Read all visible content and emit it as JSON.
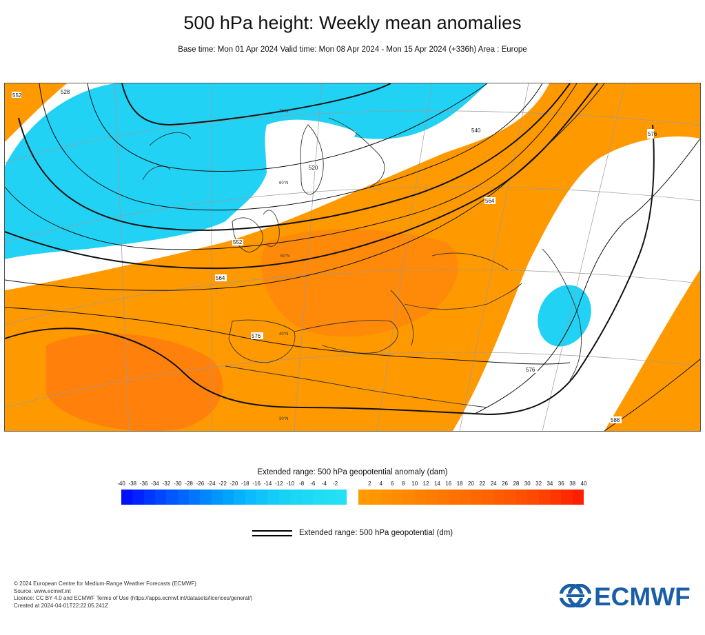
{
  "header": {
    "title": "500 hPa height: Weekly mean anomalies",
    "subtitle": "Base time: Mon 01 Apr 2024 Valid time: Mon 08 Apr 2024 - Mon 15 Apr 2024 (+336h) Area : Europe"
  },
  "map": {
    "contour_labels": [
      {
        "id": "c552a",
        "text": "552"
      },
      {
        "id": "c552b",
        "text": "552"
      },
      {
        "id": "c564a",
        "text": "564"
      },
      {
        "id": "c564b",
        "text": "564"
      },
      {
        "id": "c576a",
        "text": "576"
      },
      {
        "id": "c576b",
        "text": "576"
      },
      {
        "id": "c576c",
        "text": "576"
      },
      {
        "id": "c588",
        "text": "588"
      },
      {
        "id": "c540",
        "text": "540"
      },
      {
        "id": "c528",
        "text": "528"
      },
      {
        "id": "c520",
        "text": "520"
      }
    ],
    "latitude_labels": [
      "70°N",
      "60°N",
      "50°N",
      "40°N",
      "30°N"
    ],
    "colors": {
      "negative_anomaly": "#22d2f5",
      "positive_anomaly": "#ff9900",
      "strong_positive_anomaly": "#ff7a10",
      "coastline": "#333333",
      "contour": "#111111",
      "graticule": "#999999"
    }
  },
  "legend": {
    "title": "Extended range: 500 hPa geopotential anomaly (dam)",
    "negative_ticks": [
      "-40",
      "-38",
      "-36",
      "-34",
      "-32",
      "-30",
      "-28",
      "-26",
      "-24",
      "-22",
      "-20",
      "-18",
      "-16",
      "-14",
      "-12",
      "-10",
      "-8",
      "-6",
      "-4",
      "-2"
    ],
    "positive_ticks": [
      "2",
      "4",
      "6",
      "8",
      "10",
      "12",
      "14",
      "16",
      "18",
      "20",
      "22",
      "24",
      "26",
      "28",
      "30",
      "32",
      "34",
      "36",
      "38",
      "40"
    ],
    "negative_colors": [
      "#0010ff",
      "#0022ff",
      "#0035ff",
      "#0045ff",
      "#0056ff",
      "#0066ff",
      "#0076ff",
      "#0086ff",
      "#0096ff",
      "#00a4ff",
      "#05b0ff",
      "#0abcff",
      "#0fc4fc",
      "#14ccf8",
      "#18d2f6",
      "#1bd6f5",
      "#1ed9f5",
      "#20dcf5",
      "#21def5",
      "#22e0f5"
    ],
    "positive_colors": [
      "#ff9a00",
      "#ff9500",
      "#ff9000",
      "#ff8b00",
      "#ff8600",
      "#ff8100",
      "#ff7c00",
      "#ff7700",
      "#ff7200",
      "#ff6d00",
      "#ff6800",
      "#ff6200",
      "#ff5c00",
      "#ff5600",
      "#ff4f00",
      "#ff4800",
      "#ff4000",
      "#ff3600",
      "#ff2b00",
      "#ff1e00"
    ],
    "line_label": "Extended range: 500 hPa geopotential (dm)"
  },
  "footer": {
    "copyright": "© 2024 European Centre for Medium-Range Weather Forecasts (ECMWF)",
    "source": "Source: www.ecmwf.int",
    "licence": "Licence: CC BY 4.0 and ECMWF Terms of Use (https://apps.ecmwf.int/datasets/licences/general/)",
    "created": "Created at 2024-04-01T22:22:05.241Z"
  },
  "logo": {
    "text": "ECMWF",
    "color": "#1b5ea8"
  }
}
